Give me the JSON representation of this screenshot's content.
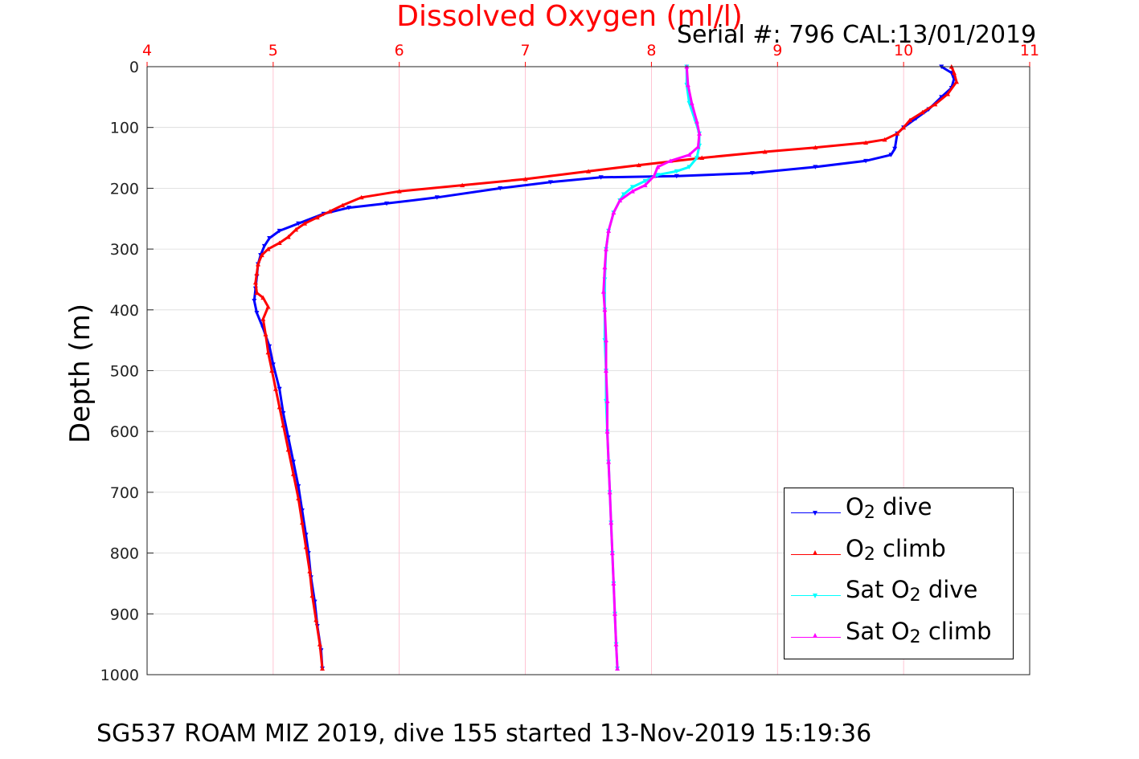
{
  "page": {
    "title": "Dissolved Oxygen (ml/l)",
    "serial": "Serial #: 796  CAL:13/01/2019",
    "footer": "SG537 ROAM MIZ 2019, dive 155 started 13-Nov-2019 15:19:36",
    "ylabel": "Depth (m)",
    "colors": {
      "title": "#ff0000",
      "x_ticks": "#ff0000",
      "grid_v": "#ffb6c8",
      "grid_h": "#d9d9d9",
      "o2_dive": "#0000ff",
      "o2_climb": "#ff0000",
      "sat_dive": "#00ffff",
      "sat_climb": "#ff00ff"
    }
  },
  "legend": {
    "position": "lower-right",
    "items": [
      {
        "pre": "O",
        "sub": "2",
        "post": " dive",
        "color": "#0000ff",
        "marker": "down-triangle"
      },
      {
        "pre": "O",
        "sub": "2",
        "post": " climb",
        "color": "#ff0000",
        "marker": "up-triangle"
      },
      {
        "pre": "Sat O",
        "sub": "2",
        "post": " dive",
        "color": "#00ffff",
        "marker": "down-triangle"
      },
      {
        "pre": "Sat O",
        "sub": "2",
        "post": " climb",
        "color": "#ff00ff",
        "marker": "up-triangle"
      }
    ]
  },
  "chart_data": {
    "type": "line",
    "title": "Dissolved Oxygen (ml/l)",
    "xlabel": "",
    "ylabel": "Depth (m)",
    "xlim": [
      4,
      11
    ],
    "ylim": [
      0,
      1000
    ],
    "y_reversed": true,
    "x_axis_location": "top",
    "xticks": [
      4,
      5,
      6,
      7,
      8,
      9,
      10,
      11
    ],
    "yticks": [
      0,
      100,
      200,
      300,
      400,
      500,
      600,
      700,
      800,
      900,
      1000
    ],
    "grid": true,
    "series": [
      {
        "name": "O2 dive",
        "color": "#0000ff",
        "marker": "down-triangle",
        "points": [
          [
            10.3,
            0
          ],
          [
            10.38,
            10
          ],
          [
            10.4,
            20
          ],
          [
            10.38,
            35
          ],
          [
            10.3,
            50
          ],
          [
            10.2,
            70
          ],
          [
            10.1,
            85
          ],
          [
            10.0,
            100
          ],
          [
            9.95,
            110
          ],
          [
            9.93,
            135
          ],
          [
            9.9,
            145
          ],
          [
            9.7,
            155
          ],
          [
            9.3,
            165
          ],
          [
            8.8,
            175
          ],
          [
            8.2,
            180
          ],
          [
            7.6,
            182
          ],
          [
            7.2,
            190
          ],
          [
            6.8,
            200
          ],
          [
            6.3,
            215
          ],
          [
            5.9,
            225
          ],
          [
            5.6,
            232
          ],
          [
            5.4,
            242
          ],
          [
            5.2,
            258
          ],
          [
            5.05,
            270
          ],
          [
            4.97,
            282
          ],
          [
            4.93,
            295
          ],
          [
            4.9,
            310
          ],
          [
            4.88,
            325
          ],
          [
            4.87,
            345
          ],
          [
            4.86,
            365
          ],
          [
            4.85,
            385
          ],
          [
            4.87,
            405
          ],
          [
            4.92,
            430
          ],
          [
            4.97,
            460
          ],
          [
            5.0,
            490
          ],
          [
            5.05,
            530
          ],
          [
            5.08,
            570
          ],
          [
            5.12,
            610
          ],
          [
            5.16,
            650
          ],
          [
            5.2,
            690
          ],
          [
            5.23,
            730
          ],
          [
            5.26,
            770
          ],
          [
            5.28,
            800
          ],
          [
            5.3,
            840
          ],
          [
            5.33,
            880
          ],
          [
            5.35,
            920
          ],
          [
            5.38,
            960
          ],
          [
            5.39,
            990
          ]
        ]
      },
      {
        "name": "O2 climb",
        "color": "#ff0000",
        "marker": "up-triangle",
        "points": [
          [
            5.39,
            990
          ],
          [
            5.37,
            950
          ],
          [
            5.34,
            910
          ],
          [
            5.31,
            870
          ],
          [
            5.29,
            830
          ],
          [
            5.26,
            790
          ],
          [
            5.23,
            750
          ],
          [
            5.2,
            710
          ],
          [
            5.16,
            670
          ],
          [
            5.12,
            630
          ],
          [
            5.08,
            590
          ],
          [
            5.05,
            560
          ],
          [
            5.02,
            530
          ],
          [
            4.99,
            500
          ],
          [
            4.96,
            470
          ],
          [
            4.94,
            440
          ],
          [
            4.92,
            415
          ],
          [
            4.96,
            395
          ],
          [
            4.92,
            380
          ],
          [
            4.87,
            372
          ],
          [
            4.86,
            355
          ],
          [
            4.87,
            340
          ],
          [
            4.88,
            325
          ],
          [
            4.91,
            310
          ],
          [
            4.96,
            300
          ],
          [
            5.05,
            290
          ],
          [
            5.12,
            280
          ],
          [
            5.18,
            268
          ],
          [
            5.25,
            258
          ],
          [
            5.35,
            248
          ],
          [
            5.45,
            238
          ],
          [
            5.55,
            228
          ],
          [
            5.7,
            215
          ],
          [
            6.0,
            205
          ],
          [
            6.5,
            195
          ],
          [
            7.0,
            185
          ],
          [
            7.5,
            172
          ],
          [
            7.9,
            162
          ],
          [
            8.4,
            150
          ],
          [
            8.9,
            140
          ],
          [
            9.3,
            133
          ],
          [
            9.7,
            125
          ],
          [
            9.85,
            120
          ],
          [
            9.95,
            110
          ],
          [
            10.0,
            100
          ],
          [
            10.05,
            88
          ],
          [
            10.15,
            75
          ],
          [
            10.25,
            62
          ],
          [
            10.35,
            45
          ],
          [
            10.42,
            25
          ],
          [
            10.4,
            10
          ],
          [
            10.38,
            0
          ]
        ]
      },
      {
        "name": "Sat O2 dive",
        "color": "#00ffff",
        "marker": "down-triangle",
        "points": [
          [
            8.28,
            0
          ],
          [
            8.28,
            30
          ],
          [
            8.3,
            60
          ],
          [
            8.35,
            90
          ],
          [
            8.38,
            110
          ],
          [
            8.38,
            130
          ],
          [
            8.36,
            150
          ],
          [
            8.3,
            165
          ],
          [
            8.2,
            172
          ],
          [
            8.05,
            178
          ],
          [
            7.95,
            188
          ],
          [
            7.85,
            198
          ],
          [
            7.78,
            210
          ],
          [
            7.75,
            220
          ],
          [
            7.7,
            240
          ],
          [
            7.66,
            270
          ],
          [
            7.64,
            300
          ],
          [
            7.63,
            350
          ],
          [
            7.63,
            400
          ],
          [
            7.63,
            450
          ],
          [
            7.64,
            500
          ],
          [
            7.64,
            550
          ],
          [
            7.65,
            600
          ],
          [
            7.66,
            650
          ],
          [
            7.67,
            700
          ],
          [
            7.68,
            750
          ],
          [
            7.69,
            800
          ],
          [
            7.7,
            850
          ],
          [
            7.71,
            900
          ],
          [
            7.72,
            950
          ],
          [
            7.73,
            990
          ]
        ]
      },
      {
        "name": "Sat O2 climb",
        "color": "#ff00ff",
        "marker": "up-triangle",
        "points": [
          [
            7.73,
            990
          ],
          [
            7.72,
            950
          ],
          [
            7.71,
            900
          ],
          [
            7.7,
            850
          ],
          [
            7.69,
            800
          ],
          [
            7.68,
            750
          ],
          [
            7.67,
            700
          ],
          [
            7.66,
            650
          ],
          [
            7.65,
            600
          ],
          [
            7.65,
            550
          ],
          [
            7.64,
            500
          ],
          [
            7.64,
            450
          ],
          [
            7.63,
            400
          ],
          [
            7.62,
            370
          ],
          [
            7.63,
            330
          ],
          [
            7.64,
            300
          ],
          [
            7.66,
            270
          ],
          [
            7.7,
            240
          ],
          [
            7.75,
            220
          ],
          [
            7.85,
            205
          ],
          [
            7.95,
            195
          ],
          [
            8.02,
            180
          ],
          [
            8.05,
            165
          ],
          [
            8.15,
            155
          ],
          [
            8.3,
            145
          ],
          [
            8.37,
            132
          ],
          [
            8.38,
            110
          ],
          [
            8.36,
            90
          ],
          [
            8.32,
            60
          ],
          [
            8.29,
            30
          ],
          [
            8.28,
            0
          ]
        ]
      }
    ]
  }
}
